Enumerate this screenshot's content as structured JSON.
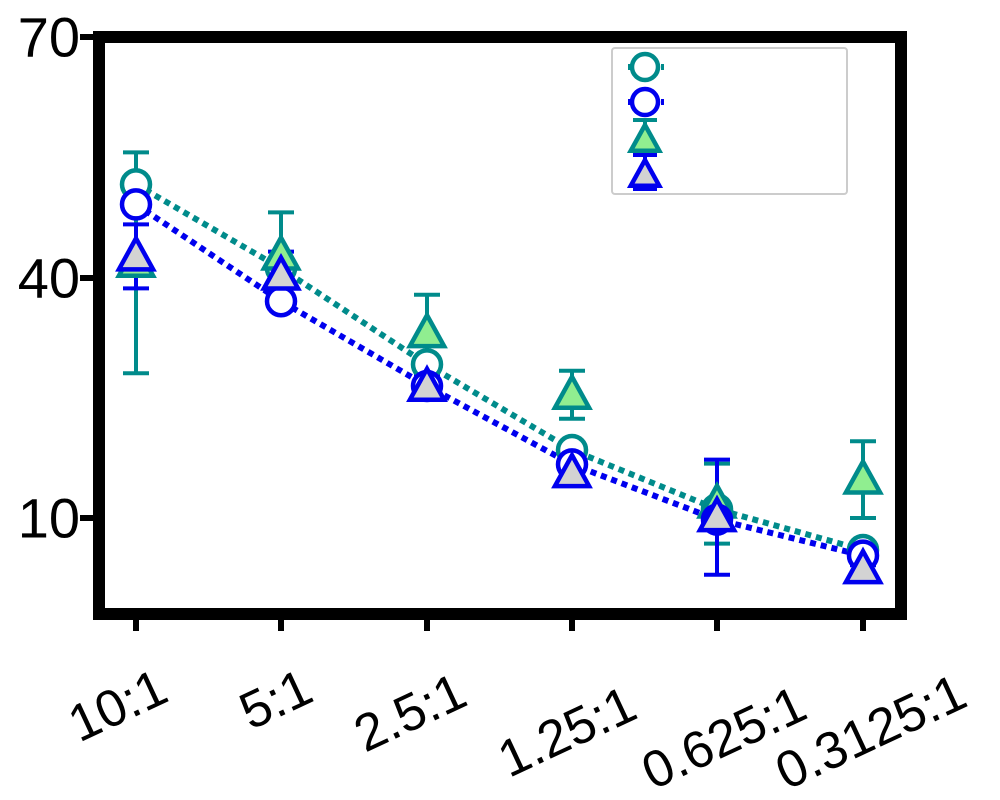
{
  "chart_data": {
    "type": "scatter",
    "title": "",
    "xlabel": "",
    "ylabel": "",
    "categories": [
      "10:1",
      "5:1",
      "2.5:1",
      "1.25:1",
      "0.625:1",
      "0.3125:1"
    ],
    "y_ticks": [
      10,
      40,
      70
    ],
    "ylim": [
      -2,
      70
    ],
    "grid": false,
    "legend_position": "top-right",
    "series": [
      {
        "marker": "circle",
        "line": "dotted",
        "color": "#008b8b",
        "fill": "#ffffff",
        "values": [
          51.7,
          41.2,
          29.2,
          18.5,
          11.1,
          6.0
        ],
        "error": [
          0,
          0,
          0,
          0,
          0,
          0
        ]
      },
      {
        "marker": "circle",
        "line": "dotted",
        "color": "#0000ee",
        "fill": "#ffffff",
        "values": [
          49.2,
          37.1,
          26.5,
          16.7,
          9.8,
          5.3
        ],
        "error": [
          0,
          0,
          0,
          0,
          0,
          0
        ]
      },
      {
        "marker": "triangle",
        "line": "none",
        "color": "#008b8b",
        "fill": "#90ee90",
        "values": [
          41.9,
          42.8,
          33.1,
          25.4,
          11.8,
          14.8
        ],
        "error": [
          13.8,
          5.4,
          4.8,
          3.0,
          5.0,
          4.8
        ]
      },
      {
        "marker": "triangle",
        "line": "none",
        "color": "#0000ee",
        "fill": "#d3d3d3",
        "values": [
          42.7,
          40.3,
          26.4,
          15.6,
          10.1,
          3.6
        ],
        "error": [
          4.0,
          3.0,
          1.6,
          0.6,
          7.2,
          0.5
        ]
      }
    ]
  }
}
